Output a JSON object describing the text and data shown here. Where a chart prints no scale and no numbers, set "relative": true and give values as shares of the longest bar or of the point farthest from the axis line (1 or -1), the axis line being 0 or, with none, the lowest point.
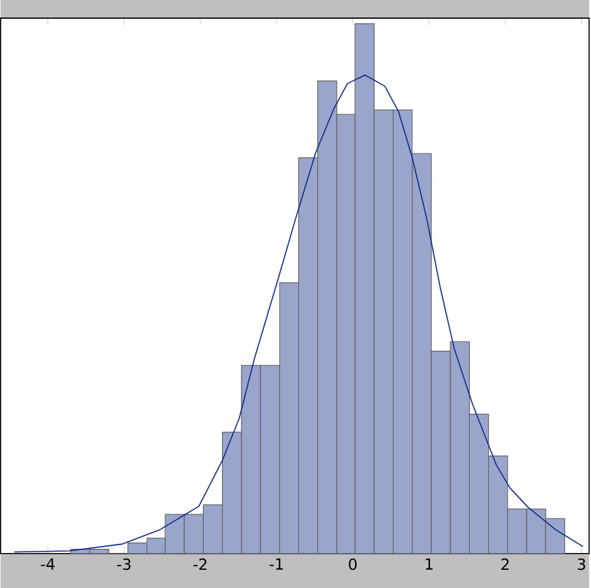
{
  "chart_data": {
    "type": "histogram",
    "relative": true,
    "xlim": [
      -4.62,
      3.1
    ],
    "xticks": [
      -4,
      -3,
      -2,
      -1,
      0,
      1,
      2,
      3
    ],
    "series": [
      {
        "color": "#99a5cb",
        "bins": [
          -3.7,
          -3.45,
          -3.2,
          -2.95,
          -2.7,
          -2.46,
          -2.21,
          -1.96,
          -1.71,
          -1.46,
          -1.21,
          -0.96,
          -0.71,
          -0.46,
          -0.21,
          0.03,
          0.28,
          0.53,
          0.78,
          1.03,
          1.28,
          1.53,
          1.78,
          2.03,
          2.28,
          2.53,
          2.78
        ],
        "values": [
          0.008,
          0.008,
          0,
          0.02,
          0.029,
          0.074,
          0.074,
          0.092,
          0.229,
          0.355,
          0.355,
          0.511,
          0.747,
          0.892,
          0.829,
          1,
          0.837,
          0.837,
          0.755,
          0.382,
          0.4,
          0.263,
          0.184,
          0.084,
          0.084,
          0.066
        ]
      },
      {
        "type": "line",
        "color": "#102b8c",
        "x": [
          -4.44,
          -3.72,
          -3.02,
          -2.53,
          -2.02,
          -1.71,
          -1.49,
          -1.29,
          -0.98,
          -0.75,
          -0.49,
          -0.25,
          -0.07,
          0.16,
          0.42,
          0.6,
          0.78,
          0.97,
          1.15,
          1.33,
          1.57,
          1.88,
          2.06,
          2.3,
          2.66,
          3.02
        ],
        "values": [
          0.003,
          0.005,
          0.018,
          0.045,
          0.089,
          0.176,
          0.255,
          0.368,
          0.518,
          0.632,
          0.755,
          0.839,
          0.887,
          0.903,
          0.882,
          0.834,
          0.747,
          0.632,
          0.5,
          0.387,
          0.282,
          0.168,
          0.124,
          0.087,
          0.045,
          0.013
        ]
      }
    ]
  }
}
